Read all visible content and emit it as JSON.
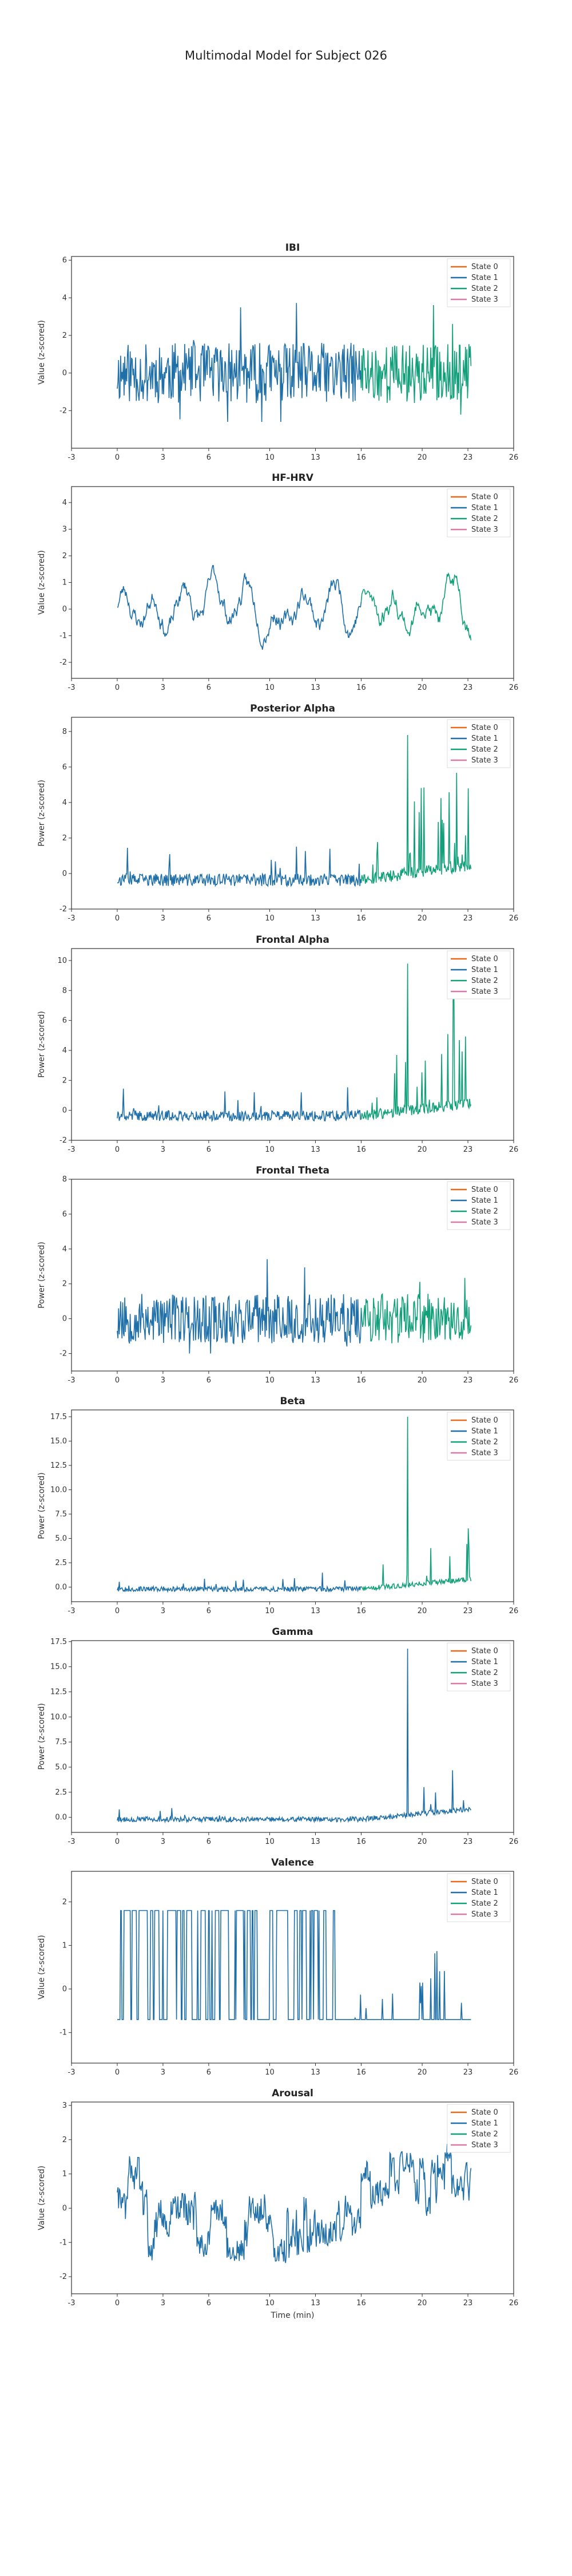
{
  "figure": {
    "title": "Multimodal Model for Subject 026"
  },
  "colors": {
    "State 0": "#e66a1c",
    "State 1": "#1f6fa8",
    "State 2": "#12a07a",
    "State 3": "#d77aa9"
  },
  "chart_data": [
    {
      "type": "line",
      "title": "IBI",
      "ylabel": "Value (z-scored)",
      "xlabel": "",
      "xlim": [
        -3,
        26
      ],
      "ylim": [
        -4,
        6.2
      ],
      "xticks": [
        -3,
        0,
        3,
        6,
        10,
        13,
        16,
        20,
        23,
        26
      ],
      "yticks": [
        -2,
        0,
        2,
        4,
        6
      ],
      "legend": "top-right",
      "states": [
        "State 0",
        "State 1",
        "State 2",
        "State 3"
      ],
      "x_end": 23.2,
      "gen": {
        "base": 0.0,
        "amp": 1.0,
        "seed": 11,
        "mode": "noisy",
        "ymin": -2.6,
        "ymax": 5.3
      }
    },
    {
      "type": "line",
      "title": "HF-HRV",
      "ylabel": "Value (z-scored)",
      "xlabel": "",
      "xlim": [
        -3,
        26
      ],
      "ylim": [
        -2.6,
        4.6
      ],
      "xticks": [
        -3,
        0,
        3,
        6,
        10,
        13,
        16,
        20,
        23,
        26
      ],
      "yticks": [
        -2,
        -1,
        0,
        1,
        2,
        3,
        4
      ],
      "legend": "top-right",
      "states": [
        "State 0",
        "State 1",
        "State 2",
        "State 3"
      ],
      "x_end": 23.2,
      "gen": {
        "base": 0.2,
        "amp": 0.8,
        "seed": 23,
        "mode": "smooth",
        "ymin": -1.8,
        "ymax": 3.5
      }
    },
    {
      "type": "line",
      "title": "Posterior Alpha",
      "ylabel": "Power (z-scored)",
      "xlabel": "",
      "xlim": [
        -3,
        26
      ],
      "ylim": [
        -2,
        8.8
      ],
      "xticks": [
        -3,
        0,
        3,
        6,
        10,
        13,
        16,
        20,
        23,
        26
      ],
      "yticks": [
        -2,
        0,
        2,
        4,
        6,
        8
      ],
      "legend": "top-right",
      "states": [
        "State 0",
        "State 1",
        "State 2",
        "State 3"
      ],
      "x_end": 23.2,
      "gen": {
        "base": -0.5,
        "amp": 0.35,
        "seed": 37,
        "mode": "spiky",
        "ymin": -1.0,
        "ymax": 7.8
      }
    },
    {
      "type": "line",
      "title": "Frontal Alpha",
      "ylabel": "Power (z-scored)",
      "xlabel": "",
      "xlim": [
        -3,
        26
      ],
      "ylim": [
        -2,
        10.8
      ],
      "xticks": [
        -3,
        0,
        3,
        6,
        10,
        13,
        16,
        20,
        23,
        26
      ],
      "yticks": [
        -2,
        0,
        2,
        4,
        6,
        8,
        10
      ],
      "legend": "top-right",
      "states": [
        "State 0",
        "State 1",
        "State 2",
        "State 3"
      ],
      "x_end": 23.2,
      "gen": {
        "base": -0.5,
        "amp": 0.35,
        "seed": 41,
        "mode": "spiky",
        "ymin": -1.0,
        "ymax": 9.8
      }
    },
    {
      "type": "line",
      "title": "Frontal Theta",
      "ylabel": "Power (z-scored)",
      "xlabel": "",
      "xlim": [
        -3,
        26
      ],
      "ylim": [
        -3,
        8
      ],
      "xticks": [
        -3,
        0,
        3,
        6,
        10,
        13,
        16,
        20,
        23,
        26
      ],
      "yticks": [
        -2,
        0,
        2,
        4,
        6,
        8
      ],
      "legend": "top-right",
      "states": [
        "State 0",
        "State 1",
        "State 2",
        "State 3"
      ],
      "x_end": 23.2,
      "gen": {
        "base": 0.0,
        "amp": 0.9,
        "seed": 53,
        "mode": "noisy",
        "ymin": -2.0,
        "ymax": 7.0
      }
    },
    {
      "type": "line",
      "title": "Beta",
      "ylabel": "Power (z-scored)",
      "xlabel": "",
      "xlim": [
        -3,
        26
      ],
      "ylim": [
        -1.5,
        18.2
      ],
      "xticks": [
        -3,
        0,
        3,
        6,
        10,
        13,
        16,
        20,
        23,
        26
      ],
      "yticks": [
        0.0,
        2.5,
        5.0,
        7.5,
        10.0,
        12.5,
        15.0,
        17.5
      ],
      "legend": "top-right",
      "states": [
        "State 0",
        "State 1",
        "State 2",
        "State 3"
      ],
      "x_end": 23.2,
      "gen": {
        "base": -0.3,
        "amp": 0.25,
        "seed": 67,
        "mode": "rare",
        "ymin": -0.6,
        "ymax": 17.5
      }
    },
    {
      "type": "line",
      "title": "Gamma",
      "ylabel": "Power (z-scored)",
      "xlabel": "",
      "xlim": [
        -3,
        26
      ],
      "ylim": [
        -1.5,
        17.6
      ],
      "xticks": [
        -3,
        0,
        3,
        6,
        10,
        13,
        16,
        20,
        23,
        26
      ],
      "yticks": [
        0.0,
        2.5,
        5.0,
        7.5,
        10.0,
        12.5,
        15.0,
        17.5
      ],
      "legend": "top-right",
      "states": [
        "State 0",
        "State 1",
        "State 2",
        "State 3"
      ],
      "x_end": 23.2,
      "gen": {
        "base": -0.3,
        "amp": 0.25,
        "seed": 79,
        "mode": "rare",
        "ymin": -0.6,
        "ymax": 16.8
      }
    },
    {
      "type": "line",
      "title": "Valence",
      "ylabel": "Value (z-scored)",
      "xlabel": "",
      "xlim": [
        -3,
        26
      ],
      "ylim": [
        -1.7,
        2.7
      ],
      "xticks": [
        -3,
        0,
        3,
        6,
        10,
        13,
        16,
        20,
        23,
        26
      ],
      "yticks": [
        -1,
        0,
        1,
        2
      ],
      "legend": "top-right",
      "states": [
        "State 0",
        "State 1",
        "State 2",
        "State 3"
      ],
      "x_end": 23.2,
      "gen": {
        "base": -0.7,
        "amp": 0.0,
        "seed": 89,
        "mode": "binary",
        "ymin": -0.7,
        "ymax": 1.8
      }
    },
    {
      "type": "line",
      "title": "Arousal",
      "ylabel": "Value (z-scored)",
      "xlabel": "Time (min)",
      "xlim": [
        -3,
        26
      ],
      "ylim": [
        -2.5,
        3.1
      ],
      "xticks": [
        -3,
        0,
        3,
        6,
        10,
        13,
        16,
        20,
        23,
        26
      ],
      "yticks": [
        -2,
        -1,
        0,
        1,
        2,
        3
      ],
      "legend": "top-right",
      "states": [
        "State 0",
        "State 1",
        "State 2",
        "State 3"
      ],
      "x_end": 23.2,
      "gen": {
        "base": 0.0,
        "amp": 0.9,
        "seed": 97,
        "mode": "stepped",
        "ymin": -1.6,
        "ymax": 2.1
      }
    }
  ]
}
